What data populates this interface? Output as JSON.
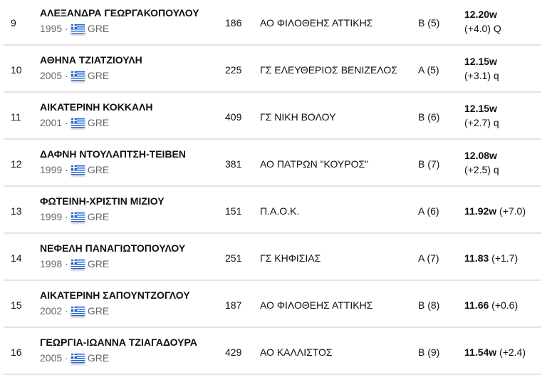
{
  "rows": [
    {
      "rank": "9",
      "name": "ΑΛΕΞΑΝΔΡΑ ΓΕΩΡΓΑΚΟΠΟΥΛΟΥ",
      "year": "1995",
      "country": "GRE",
      "bib": "186",
      "club": "ΑΟ ΦΙΛΟΘΕΗΣ ΑΤΤΙΚΗΣ",
      "heat": "Β  (5)",
      "mark": "12.20w",
      "wind": "(+4.0) Q",
      "two_line": true
    },
    {
      "rank": "10",
      "name": "ΑΘΗΝΑ ΤΖΙΑΤΖΙΟΥΛΗ",
      "year": "2005",
      "country": "GRE",
      "bib": "225",
      "club": "ΓΣ ΕΛΕΥΘΕΡΙΟΣ ΒΕΝΙΖΕΛΟΣ",
      "heat": "Α  (5)",
      "mark": "12.15w",
      "wind": "(+3.1) q",
      "two_line": true
    },
    {
      "rank": "11",
      "name": "ΑΙΚΑΤΕΡΙΝΗ ΚΟΚΚΑΛΗ",
      "year": "2001",
      "country": "GRE",
      "bib": "409",
      "club": "ΓΣ ΝΙΚΗ ΒΟΛΟΥ",
      "heat": "Β  (6)",
      "mark": "12.15w",
      "wind": "(+2.7) q",
      "two_line": true
    },
    {
      "rank": "12",
      "name": "ΔΑΦΝΗ ΝΤΟΥΛΑΠΤΣΗ-ΤΕΙΒΕΝ",
      "year": "1999",
      "country": "GRE",
      "bib": "381",
      "club": "ΑΟ ΠΑΤΡΩΝ \"ΚΟΥΡΟΣ\"",
      "heat": "Β  (7)",
      "mark": "12.08w",
      "wind": "(+2.5) q",
      "two_line": true
    },
    {
      "rank": "13",
      "name": "ΦΩΤΕΙΝΗ-ΧΡΙΣΤΙΝ ΜΙΖΙΟΥ",
      "year": "1999",
      "country": "GRE",
      "bib": "151",
      "club": "Π.Α.Ο.Κ.",
      "heat": "Α  (6)",
      "mark": "11.92w",
      "wind": "(+7.0)",
      "two_line": false
    },
    {
      "rank": "14",
      "name": "ΝΕΦΕΛΗ ΠΑΝΑΓΙΩΤΟΠΟΥΛΟΥ",
      "year": "1998",
      "country": "GRE",
      "bib": "251",
      "club": "ΓΣ ΚΗΦΙΣΙΑΣ",
      "heat": "Α  (7)",
      "mark": "11.83",
      "wind": "(+1.7)",
      "two_line": false
    },
    {
      "rank": "15",
      "name": "ΑΙΚΑΤΕΡΙΝΗ ΣΑΠΟΥΝΤΖΟΓΛΟΥ",
      "year": "2002",
      "country": "GRE",
      "bib": "187",
      "club": "ΑΟ ΦΙΛΟΘΕΗΣ ΑΤΤΙΚΗΣ",
      "heat": "Β  (8)",
      "mark": "11.66",
      "wind": "(+0.6)",
      "two_line": false
    },
    {
      "rank": "16",
      "name": "ΓΕΩΡΓΙΑ-ΙΩΑΝΝΑ ΤΖΙΑΓΑΔΟΥΡΑ",
      "year": "2005",
      "country": "GRE",
      "bib": "429",
      "club": "ΑΟ ΚΑΛΛΙΣΤΟΣ",
      "heat": "Β  (9)",
      "mark": "11.54w",
      "wind": "(+2.4)",
      "two_line": false
    }
  ]
}
